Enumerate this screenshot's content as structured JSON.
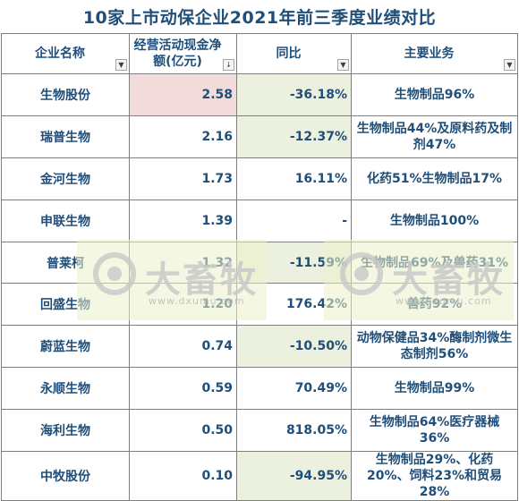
{
  "title": "10家上市动保企业2021年前三季度业绩对比",
  "columns": [
    {
      "label": "企业名称",
      "sort_icon": "filter-dropdown-icon"
    },
    {
      "label": "经营活动现金净额(亿元)",
      "sort_icon": "filter-sort-desc-icon"
    },
    {
      "label": "同比",
      "sort_icon": "filter-dropdown-icon"
    },
    {
      "label": "主要业务",
      "sort_icon": "filter-dropdown-icon"
    }
  ],
  "rows": [
    {
      "name": "生物股份",
      "cash": "2.58",
      "yoy": "-36.18%",
      "business": "生物制品96%"
    },
    {
      "name": "瑞普生物",
      "cash": "2.16",
      "yoy": "-12.37%",
      "business": "生物制品44%及原料药及制剂47%"
    },
    {
      "name": "金河生物",
      "cash": "1.73",
      "yoy": "16.11%",
      "business": "化药51%生物制品17%"
    },
    {
      "name": "申联生物",
      "cash": "1.39",
      "yoy": "-",
      "business": "生物制品100%"
    },
    {
      "name": "普莱柯",
      "cash": "1.32",
      "yoy": "-11.59%",
      "business": "生物制品69%及兽药31%"
    },
    {
      "name": "回盛生物",
      "cash": "1.20",
      "yoy": "176.42%",
      "business": "兽药92%"
    },
    {
      "name": "蔚蓝生物",
      "cash": "0.74",
      "yoy": "-10.50%",
      "business": "动物保健品34%酶制剂微生态制剂56%"
    },
    {
      "name": "永顺生物",
      "cash": "0.59",
      "yoy": "70.49%",
      "business": "生物制品99%"
    },
    {
      "name": "海利生物",
      "cash": "0.50",
      "yoy": "818.05%",
      "business": "生物制品64%医疗器械36%"
    },
    {
      "name": "中牧股份",
      "cash": "0.10",
      "yoy": "-94.95%",
      "business": "生物制品29%、化药20%、饲料23%和贸易28%"
    }
  ],
  "watermark": {
    "brand": "大畜牧",
    "site": "www.dxumu.com",
    "icon": "brand-logo-icon"
  },
  "colors": {
    "title": "#1f4e79",
    "text": "#1f4e79",
    "highlight_red": "#f2dcdb",
    "highlight_green": "#ebf1de",
    "border": "#7f7f7f"
  }
}
